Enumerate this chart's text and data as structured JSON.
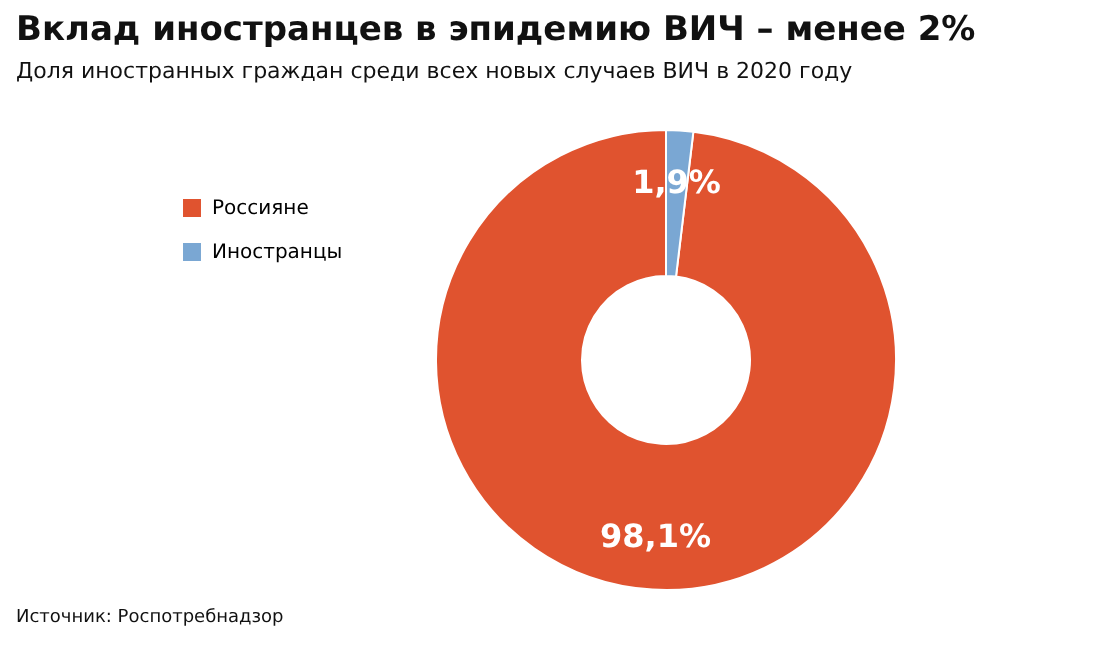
{
  "chart_data": {
    "type": "donut",
    "title": "Вклад иностранцев в эпидемию ВИЧ – менее 2%",
    "subtitle": "Доля иностранных граждан среди всех новых случаев ВИЧ в 2020 году",
    "categories": [
      "Россияне",
      "Иностранцы"
    ],
    "values": [
      98.1,
      1.9
    ],
    "colors": [
      "#e0532f",
      "#7aa7d3"
    ],
    "value_labels": [
      "98,1%",
      "1,9%"
    ],
    "legend": "left",
    "annotations": [
      "Источник: Роспотребнадзор"
    ]
  }
}
